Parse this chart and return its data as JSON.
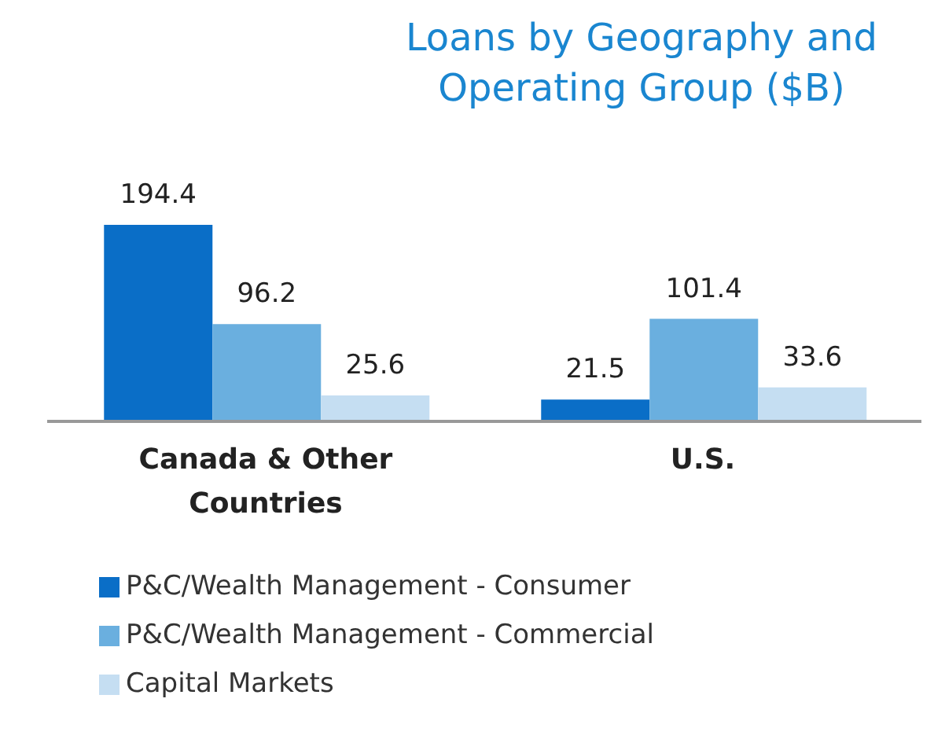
{
  "chart_data": {
    "type": "bar",
    "title": "Loans by Geography and Operating Group ($B)",
    "categories": [
      "Canada & Other Countries",
      "U.S."
    ],
    "series": [
      {
        "name": "P&C/Wealth Management - Consumer",
        "color": "#0a6ec7",
        "values": [
          194.4,
          21.5
        ]
      },
      {
        "name": "P&C/Wealth Management - Commercial",
        "color": "#6aafdf",
        "values": [
          96.2,
          101.4
        ]
      },
      {
        "name": "Capital Markets",
        "color": "#c5def2",
        "values": [
          25.6,
          33.6
        ]
      }
    ],
    "data_labels": true,
    "tick_labels": "x",
    "grid": false,
    "legend": "bottom left"
  }
}
